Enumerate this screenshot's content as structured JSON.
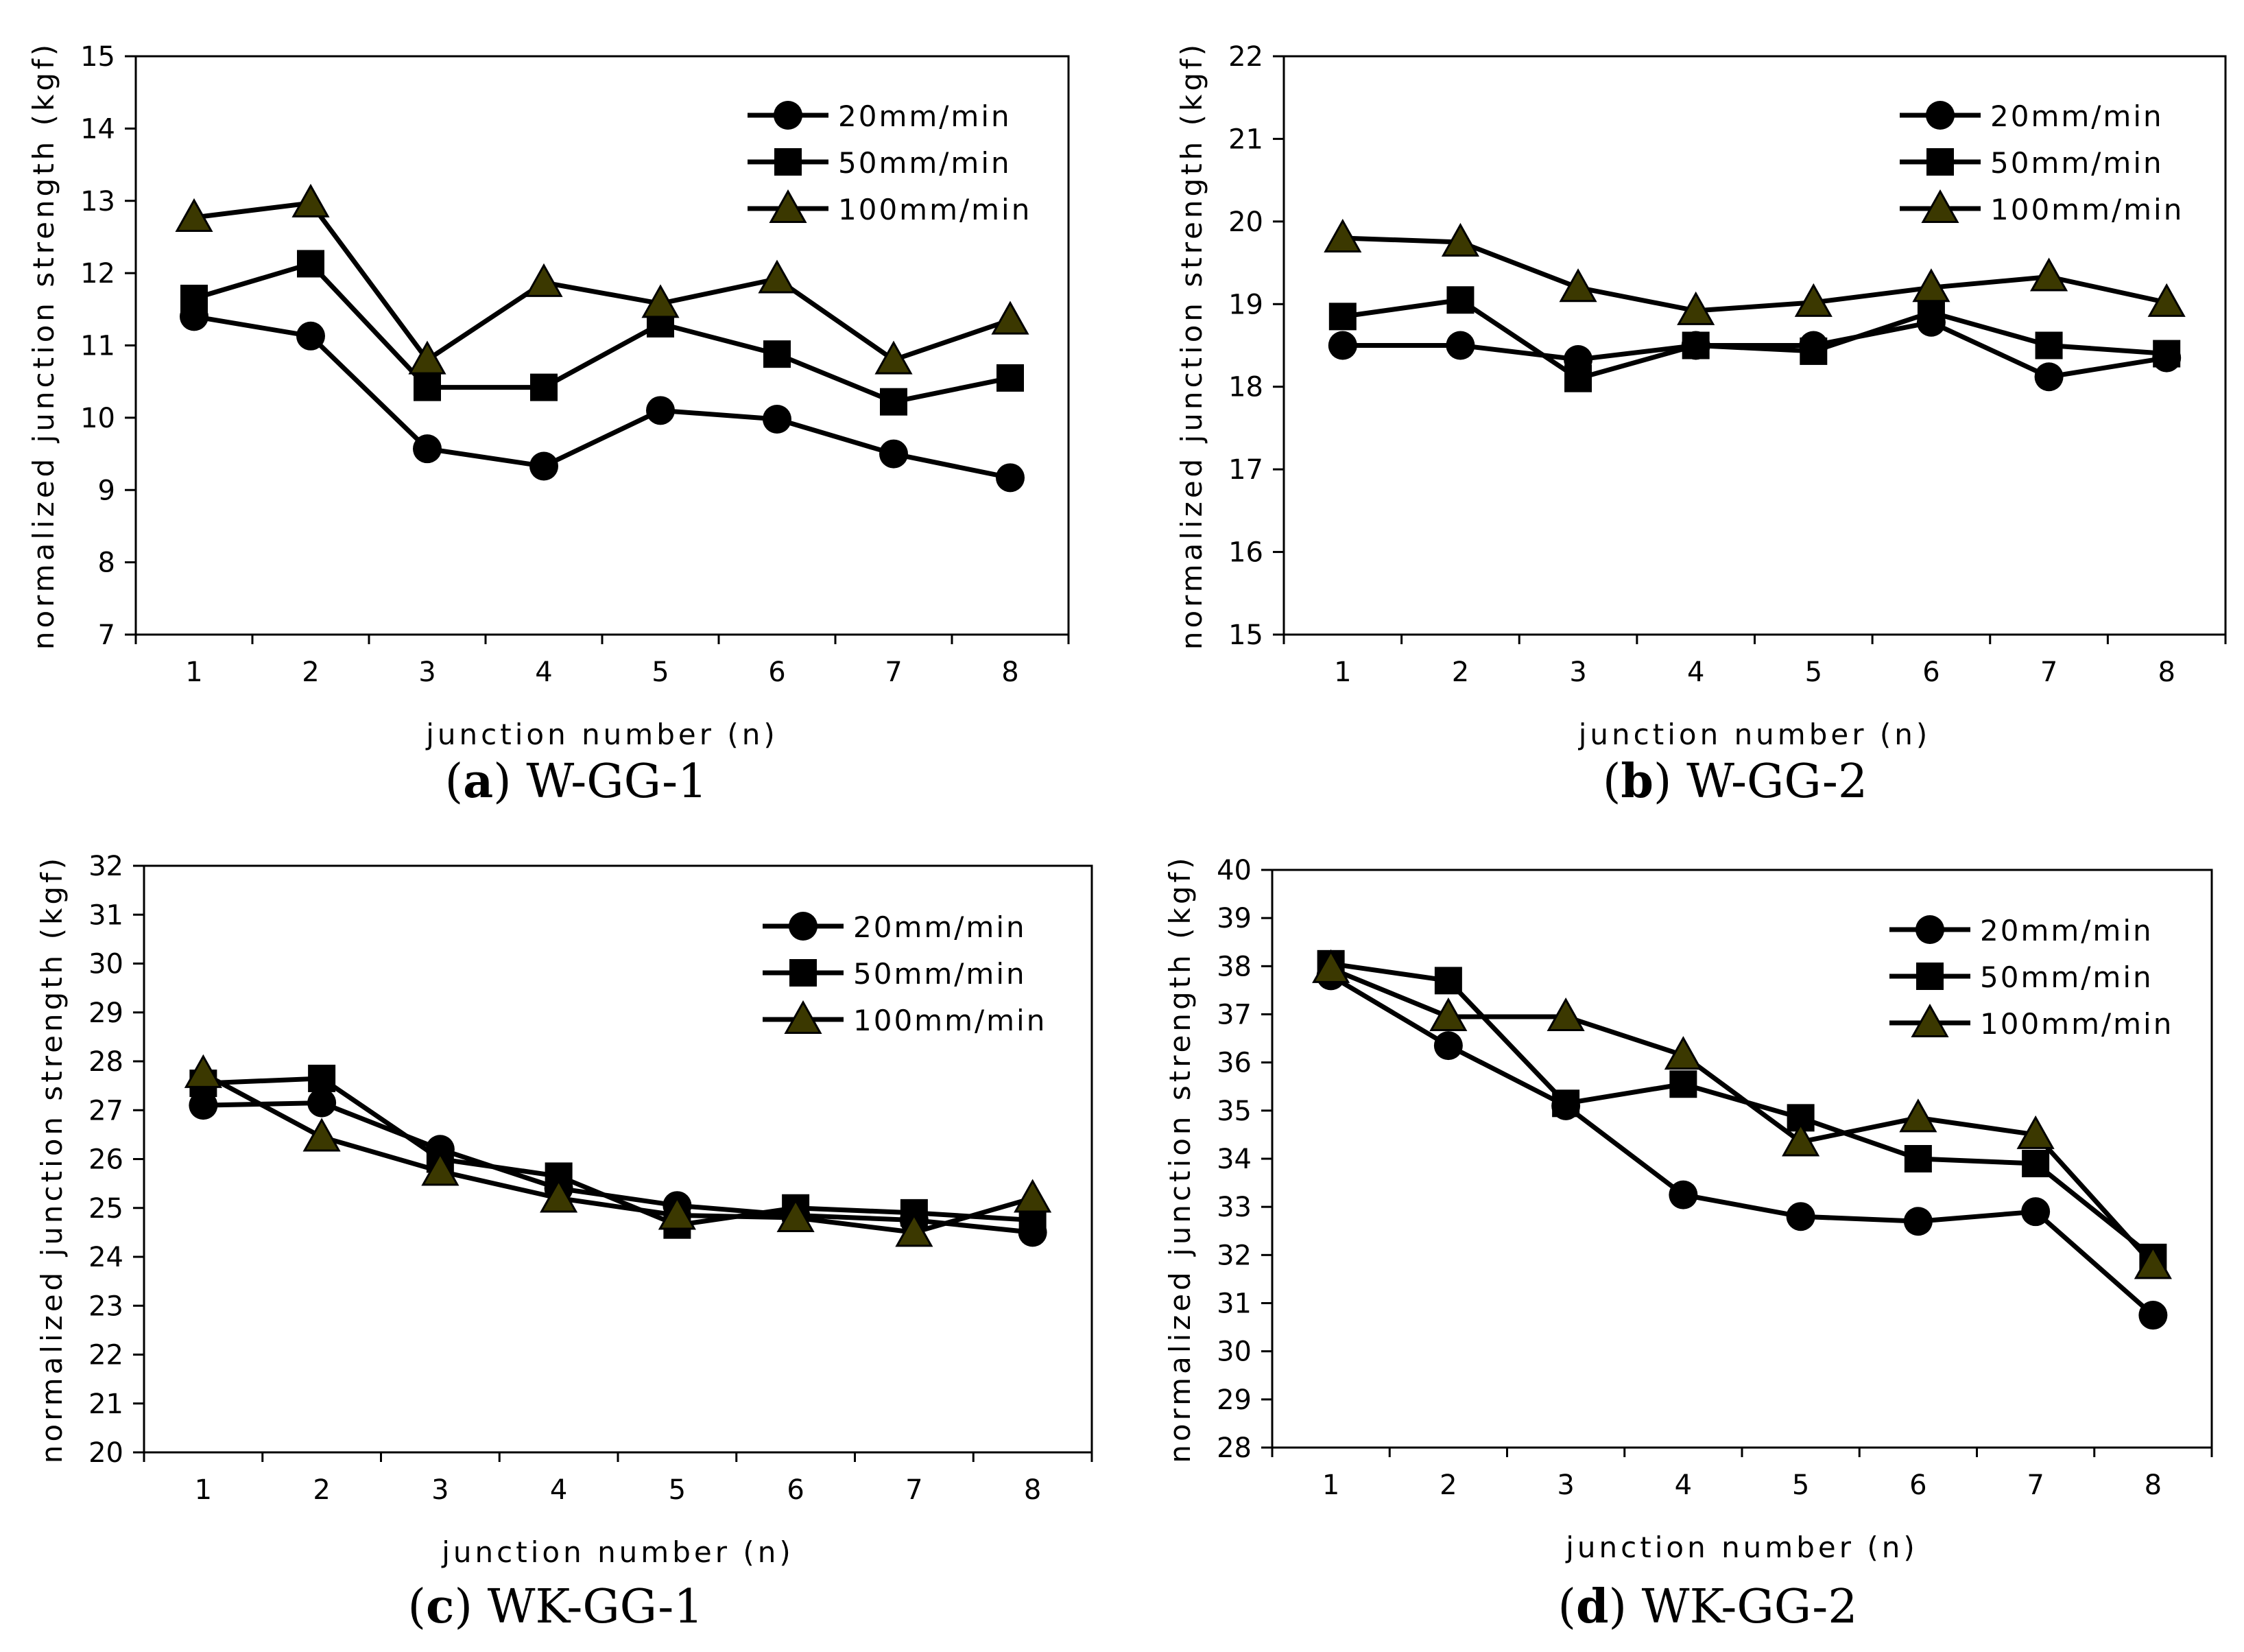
{
  "colors": {
    "line": "#000000",
    "triangle_fill": "#3b3800",
    "background": "#ffffff"
  },
  "chart_data": [
    {
      "type": "line",
      "caption_letter": "a",
      "caption_name": "W-GG-1",
      "xlabel": "junction number (n)",
      "ylabel": "normalized junction strength (kgf)",
      "categories": [
        "1",
        "2",
        "3",
        "4",
        "5",
        "6",
        "7",
        "8"
      ],
      "ylim": [
        7,
        15
      ],
      "yticks": [
        "7",
        "8",
        "9",
        "10",
        "11",
        "12",
        "13",
        "14",
        "15"
      ],
      "legend_position": "top-right",
      "series": [
        {
          "name": "20mm/min",
          "marker": "circle",
          "values": [
            11.4,
            11.13,
            9.57,
            9.33,
            10.1,
            9.98,
            9.5,
            9.17
          ]
        },
        {
          "name": "50mm/min",
          "marker": "square",
          "values": [
            11.65,
            12.13,
            10.42,
            10.42,
            11.3,
            10.88,
            10.22,
            10.55
          ]
        },
        {
          "name": "100mm/min",
          "marker": "triangle",
          "values": [
            12.77,
            12.97,
            10.8,
            11.87,
            11.58,
            11.92,
            10.8,
            11.35
          ]
        }
      ]
    },
    {
      "type": "line",
      "caption_letter": "b",
      "caption_name": "W-GG-2",
      "xlabel": "junction number (n)",
      "ylabel": "normalized junction strength (kgf)",
      "categories": [
        "1",
        "2",
        "3",
        "4",
        "5",
        "6",
        "7",
        "8"
      ],
      "ylim": [
        15,
        22
      ],
      "yticks": [
        "15",
        "16",
        "17",
        "18",
        "19",
        "20",
        "21",
        "22"
      ],
      "legend_position": "top-right",
      "series": [
        {
          "name": "20mm/min",
          "marker": "circle",
          "values": [
            18.5,
            18.5,
            18.33,
            18.5,
            18.5,
            18.78,
            18.12,
            18.35
          ]
        },
        {
          "name": "50mm/min",
          "marker": "square",
          "values": [
            18.85,
            19.05,
            18.1,
            18.5,
            18.43,
            18.9,
            18.5,
            18.4
          ]
        },
        {
          "name": "100mm/min",
          "marker": "triangle",
          "values": [
            19.8,
            19.75,
            19.2,
            18.92,
            19.02,
            19.2,
            19.33,
            19.02
          ]
        }
      ]
    },
    {
      "type": "line",
      "caption_letter": "c",
      "caption_name": "WK-GG-1",
      "xlabel": "junction number (n)",
      "ylabel": "normalized junction strength (kgf)",
      "categories": [
        "1",
        "2",
        "3",
        "4",
        "5",
        "6",
        "7",
        "8"
      ],
      "ylim": [
        20,
        32
      ],
      "yticks": [
        "20",
        "21",
        "22",
        "23",
        "24",
        "25",
        "26",
        "27",
        "28",
        "29",
        "30",
        "31",
        "32"
      ],
      "legend_position": "top-right",
      "series": [
        {
          "name": "20mm/min",
          "marker": "circle",
          "values": [
            27.1,
            27.15,
            26.2,
            25.4,
            25.05,
            24.85,
            24.75,
            24.5
          ]
        },
        {
          "name": "50mm/min",
          "marker": "square",
          "values": [
            27.55,
            27.65,
            26.0,
            25.65,
            24.65,
            25.0,
            24.9,
            24.75
          ]
        },
        {
          "name": "100mm/min",
          "marker": "triangle",
          "values": [
            27.75,
            26.45,
            25.75,
            25.2,
            24.85,
            24.8,
            24.5,
            25.2
          ]
        }
      ]
    },
    {
      "type": "line",
      "caption_letter": "d",
      "caption_name": "WK-GG-2",
      "xlabel": "junction number (n)",
      "ylabel": "normalized junction strength (kgf)",
      "categories": [
        "1",
        "2",
        "3",
        "4",
        "5",
        "6",
        "7",
        "8"
      ],
      "ylim": [
        28,
        40
      ],
      "yticks": [
        "28",
        "29",
        "30",
        "31",
        "32",
        "33",
        "34",
        "35",
        "36",
        "37",
        "38",
        "39",
        "40"
      ],
      "legend_position": "top-right",
      "series": [
        {
          "name": "20mm/min",
          "marker": "circle",
          "values": [
            37.8,
            36.35,
            35.1,
            33.25,
            32.8,
            32.7,
            32.9,
            30.75
          ]
        },
        {
          "name": "50mm/min",
          "marker": "square",
          "values": [
            38.05,
            37.7,
            35.15,
            35.55,
            34.85,
            34.0,
            33.9,
            31.95
          ]
        },
        {
          "name": "100mm/min",
          "marker": "triangle",
          "values": [
            37.95,
            36.95,
            36.95,
            36.15,
            34.35,
            34.85,
            34.5,
            31.8
          ]
        }
      ]
    }
  ]
}
